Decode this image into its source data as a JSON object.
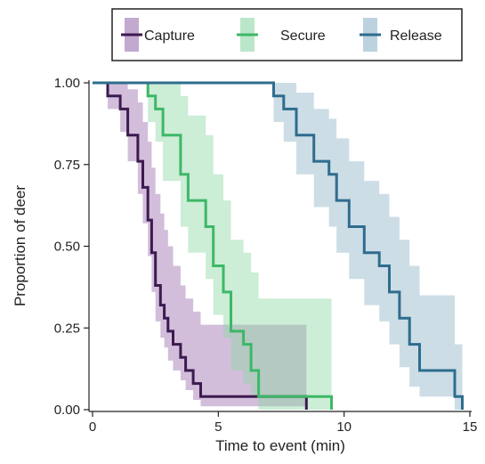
{
  "chart_data": {
    "type": "line",
    "step": true,
    "title": "",
    "xlabel": "Time to event (min)",
    "ylabel": "Proportion of deer",
    "xlim": [
      0,
      15
    ],
    "ylim": [
      0,
      1
    ],
    "x_ticks": [
      0,
      5,
      10,
      15
    ],
    "x_tick_labels": [
      "0",
      "5",
      "10",
      "15"
    ],
    "y_ticks": [
      0,
      0.25,
      0.5,
      0.75,
      1
    ],
    "y_tick_labels": [
      "0.00",
      "0.25",
      "0.50",
      "0.75",
      "1.00"
    ],
    "grid": false,
    "legend": {
      "position": "top",
      "entries": [
        "Capture",
        "Secure",
        "Release"
      ]
    },
    "series": [
      {
        "name": "Capture",
        "color": "#3d1a4f",
        "band_color": "#9b6fb0",
        "points": [
          [
            0,
            1.0
          ],
          [
            0.6,
            1.0
          ],
          [
            0.6,
            0.96
          ],
          [
            1.1,
            0.96
          ],
          [
            1.1,
            0.92
          ],
          [
            1.4,
            0.92
          ],
          [
            1.4,
            0.84
          ],
          [
            1.8,
            0.84
          ],
          [
            1.8,
            0.76
          ],
          [
            2.0,
            0.76
          ],
          [
            2.0,
            0.68
          ],
          [
            2.2,
            0.68
          ],
          [
            2.2,
            0.58
          ],
          [
            2.35,
            0.58
          ],
          [
            2.35,
            0.48
          ],
          [
            2.5,
            0.48
          ],
          [
            2.5,
            0.38
          ],
          [
            2.7,
            0.38
          ],
          [
            2.7,
            0.32
          ],
          [
            2.85,
            0.32
          ],
          [
            2.85,
            0.28
          ],
          [
            3.0,
            0.28
          ],
          [
            3.0,
            0.24
          ],
          [
            3.2,
            0.24
          ],
          [
            3.2,
            0.2
          ],
          [
            3.5,
            0.2
          ],
          [
            3.5,
            0.16
          ],
          [
            3.7,
            0.16
          ],
          [
            3.7,
            0.12
          ],
          [
            4.0,
            0.12
          ],
          [
            4.0,
            0.08
          ],
          [
            4.3,
            0.08
          ],
          [
            4.3,
            0.04
          ],
          [
            5.3,
            0.04
          ],
          [
            5.3,
            0.04
          ],
          [
            8.5,
            0.04
          ],
          [
            8.5,
            0.0
          ]
        ],
        "band": [
          [
            0,
            1.0,
            1.0
          ],
          [
            0.6,
            0.92,
            1.0
          ],
          [
            1.1,
            0.85,
            1.0
          ],
          [
            1.4,
            0.76,
            0.98
          ],
          [
            1.8,
            0.66,
            0.94
          ],
          [
            2.0,
            0.57,
            0.88
          ],
          [
            2.2,
            0.47,
            0.82
          ],
          [
            2.35,
            0.36,
            0.74
          ],
          [
            2.5,
            0.27,
            0.66
          ],
          [
            2.7,
            0.22,
            0.6
          ],
          [
            2.85,
            0.19,
            0.55
          ],
          [
            3.0,
            0.15,
            0.5
          ],
          [
            3.2,
            0.12,
            0.44
          ],
          [
            3.5,
            0.09,
            0.38
          ],
          [
            3.7,
            0.06,
            0.34
          ],
          [
            4.0,
            0.03,
            0.3
          ],
          [
            4.3,
            0.01,
            0.26
          ],
          [
            8.5,
            0.0,
            0.26
          ]
        ]
      },
      {
        "name": "Secure",
        "color": "#3db867",
        "band_color": "#8fd6a5",
        "points": [
          [
            0,
            1.0
          ],
          [
            2.2,
            1.0
          ],
          [
            2.2,
            0.96
          ],
          [
            2.5,
            0.96
          ],
          [
            2.5,
            0.92
          ],
          [
            2.8,
            0.92
          ],
          [
            2.8,
            0.84
          ],
          [
            3.5,
            0.84
          ],
          [
            3.5,
            0.72
          ],
          [
            3.8,
            0.72
          ],
          [
            3.8,
            0.64
          ],
          [
            4.5,
            0.64
          ],
          [
            4.5,
            0.56
          ],
          [
            4.8,
            0.56
          ],
          [
            4.8,
            0.44
          ],
          [
            5.2,
            0.44
          ],
          [
            5.2,
            0.36
          ],
          [
            5.5,
            0.36
          ],
          [
            5.5,
            0.24
          ],
          [
            6.0,
            0.24
          ],
          [
            6.0,
            0.2
          ],
          [
            6.3,
            0.2
          ],
          [
            6.3,
            0.12
          ],
          [
            6.6,
            0.12
          ],
          [
            6.6,
            0.04
          ],
          [
            9.5,
            0.04
          ],
          [
            9.5,
            0.0
          ]
        ],
        "band": [
          [
            0,
            1.0,
            1.0
          ],
          [
            2.2,
            0.88,
            1.0
          ],
          [
            2.5,
            0.82,
            1.0
          ],
          [
            2.8,
            0.7,
            1.0
          ],
          [
            3.5,
            0.56,
            0.96
          ],
          [
            3.8,
            0.48,
            0.9
          ],
          [
            4.5,
            0.4,
            0.84
          ],
          [
            4.8,
            0.29,
            0.72
          ],
          [
            5.2,
            0.22,
            0.64
          ],
          [
            5.5,
            0.12,
            0.52
          ],
          [
            6.0,
            0.08,
            0.48
          ],
          [
            6.3,
            0.04,
            0.42
          ],
          [
            6.6,
            0.0,
            0.34
          ],
          [
            9.5,
            0.0,
            0.34
          ]
        ]
      },
      {
        "name": "Release",
        "color": "#2e6d8e",
        "band_color": "#8fb4c8",
        "points": [
          [
            0,
            1.0
          ],
          [
            7.2,
            1.0
          ],
          [
            7.2,
            0.96
          ],
          [
            7.6,
            0.96
          ],
          [
            7.6,
            0.92
          ],
          [
            8.1,
            0.92
          ],
          [
            8.1,
            0.84
          ],
          [
            8.8,
            0.84
          ],
          [
            8.8,
            0.76
          ],
          [
            9.4,
            0.76
          ],
          [
            9.4,
            0.72
          ],
          [
            9.7,
            0.72
          ],
          [
            9.7,
            0.64
          ],
          [
            10.2,
            0.64
          ],
          [
            10.2,
            0.56
          ],
          [
            10.8,
            0.56
          ],
          [
            10.8,
            0.48
          ],
          [
            11.4,
            0.48
          ],
          [
            11.4,
            0.44
          ],
          [
            11.8,
            0.44
          ],
          [
            11.8,
            0.36
          ],
          [
            12.2,
            0.36
          ],
          [
            12.2,
            0.28
          ],
          [
            12.6,
            0.28
          ],
          [
            12.6,
            0.2
          ],
          [
            13.0,
            0.2
          ],
          [
            13.0,
            0.12
          ],
          [
            14.4,
            0.12
          ],
          [
            14.4,
            0.04
          ],
          [
            14.7,
            0.04
          ],
          [
            14.7,
            0.0
          ]
        ],
        "band": [
          [
            0,
            1.0,
            1.0
          ],
          [
            7.2,
            0.88,
            1.0
          ],
          [
            7.6,
            0.82,
            1.0
          ],
          [
            8.1,
            0.72,
            0.97
          ],
          [
            8.8,
            0.62,
            0.92
          ],
          [
            9.4,
            0.56,
            0.89
          ],
          [
            9.7,
            0.48,
            0.83
          ],
          [
            10.2,
            0.4,
            0.76
          ],
          [
            10.8,
            0.32,
            0.7
          ],
          [
            11.4,
            0.27,
            0.66
          ],
          [
            11.8,
            0.2,
            0.59
          ],
          [
            12.2,
            0.13,
            0.52
          ],
          [
            12.6,
            0.07,
            0.44
          ],
          [
            13.0,
            0.04,
            0.35
          ],
          [
            14.4,
            0.0,
            0.2
          ],
          [
            14.7,
            0.0,
            0.2
          ]
        ]
      }
    ]
  }
}
